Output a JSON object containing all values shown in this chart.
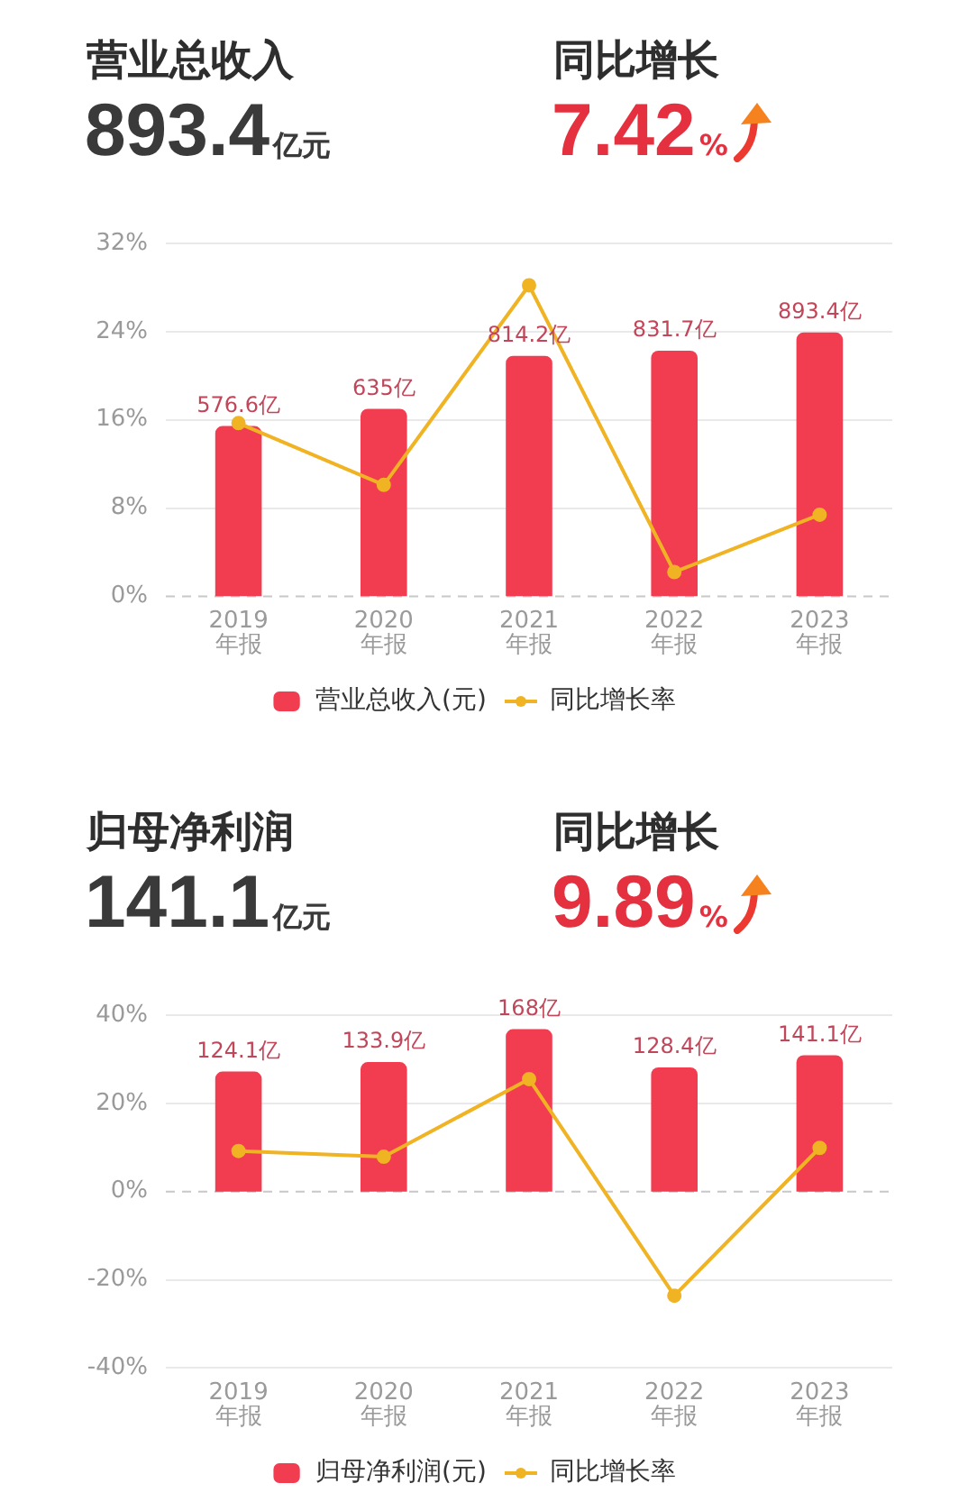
{
  "chart_data": [
    {
      "type": "bar",
      "title": "营业总收入",
      "subtitle": "893.4亿元",
      "annotations": [
        "同比增长",
        "7.42%"
      ],
      "categories": [
        "2019\n年报",
        "2020\n年报",
        "2021\n年报",
        "2022\n年报",
        "2023\n年报"
      ],
      "series": [
        {
          "name": "营业总收入(元)",
          "color": "#f23c50",
          "axis": "y2",
          "values": [
            576.6,
            635,
            814.2,
            831.7,
            893.4
          ],
          "value_labels": [
            "576.6亿",
            "635亿",
            "814.2亿",
            "831.7亿",
            "893.4亿"
          ]
        },
        {
          "name": "同比增长率",
          "type": "line",
          "color": "#f0b323",
          "values": [
            15.7,
            10.1,
            28.2,
            2.2,
            7.4
          ]
        }
      ],
      "ylim": [
        0,
        32
      ],
      "yticks": [
        {
          "value": 0,
          "label": "0%"
        },
        {
          "value": 8,
          "label": "8%"
        },
        {
          "value": 16,
          "label": "16%"
        },
        {
          "value": 24,
          "label": "24%"
        },
        {
          "value": 32,
          "label": "32%"
        }
      ],
      "y2lim": [
        0,
        1195
      ],
      "grid": "y",
      "legend": "bottom",
      "marker": "circle",
      "ref_lines": [
        {
          "axis": "y",
          "value": 0,
          "color": "#c8c8c8",
          "line_style": "dashed"
        }
      ]
    },
    {
      "type": "bar",
      "title": "归母净利润",
      "subtitle": "141.1亿元",
      "annotations": [
        "同比增长",
        "9.89%"
      ],
      "categories": [
        "2019\n年报",
        "2020\n年报",
        "2021\n年报",
        "2022\n年报",
        "2023\n年报"
      ],
      "series": [
        {
          "name": "归母净利润(元)",
          "color": "#f23c50",
          "axis": "y2",
          "values": [
            124.1,
            133.9,
            168,
            128.4,
            141.1
          ],
          "value_labels": [
            "124.1亿",
            "133.9亿",
            "168亿",
            "128.4亿",
            "141.1亿"
          ]
        },
        {
          "name": "同比增长率",
          "type": "line",
          "color": "#f0b323",
          "values": [
            9.2,
            7.9,
            25.5,
            -23.6,
            9.9
          ]
        }
      ],
      "ylim": [
        -40,
        40
      ],
      "yticks": [
        {
          "value": -40,
          "label": "-40%"
        },
        {
          "value": -20,
          "label": "-20%"
        },
        {
          "value": 0,
          "label": "0%"
        },
        {
          "value": 20,
          "label": "20%"
        },
        {
          "value": 40,
          "label": "40%"
        }
      ],
      "y2lim": [
        -182.5,
        182.5
      ],
      "grid": "y",
      "legend": "bottom",
      "marker": "circle",
      "ref_lines": [
        {
          "axis": "y",
          "value": 0,
          "color": "#c8c8c8",
          "line_style": "dashed"
        }
      ]
    }
  ]
}
